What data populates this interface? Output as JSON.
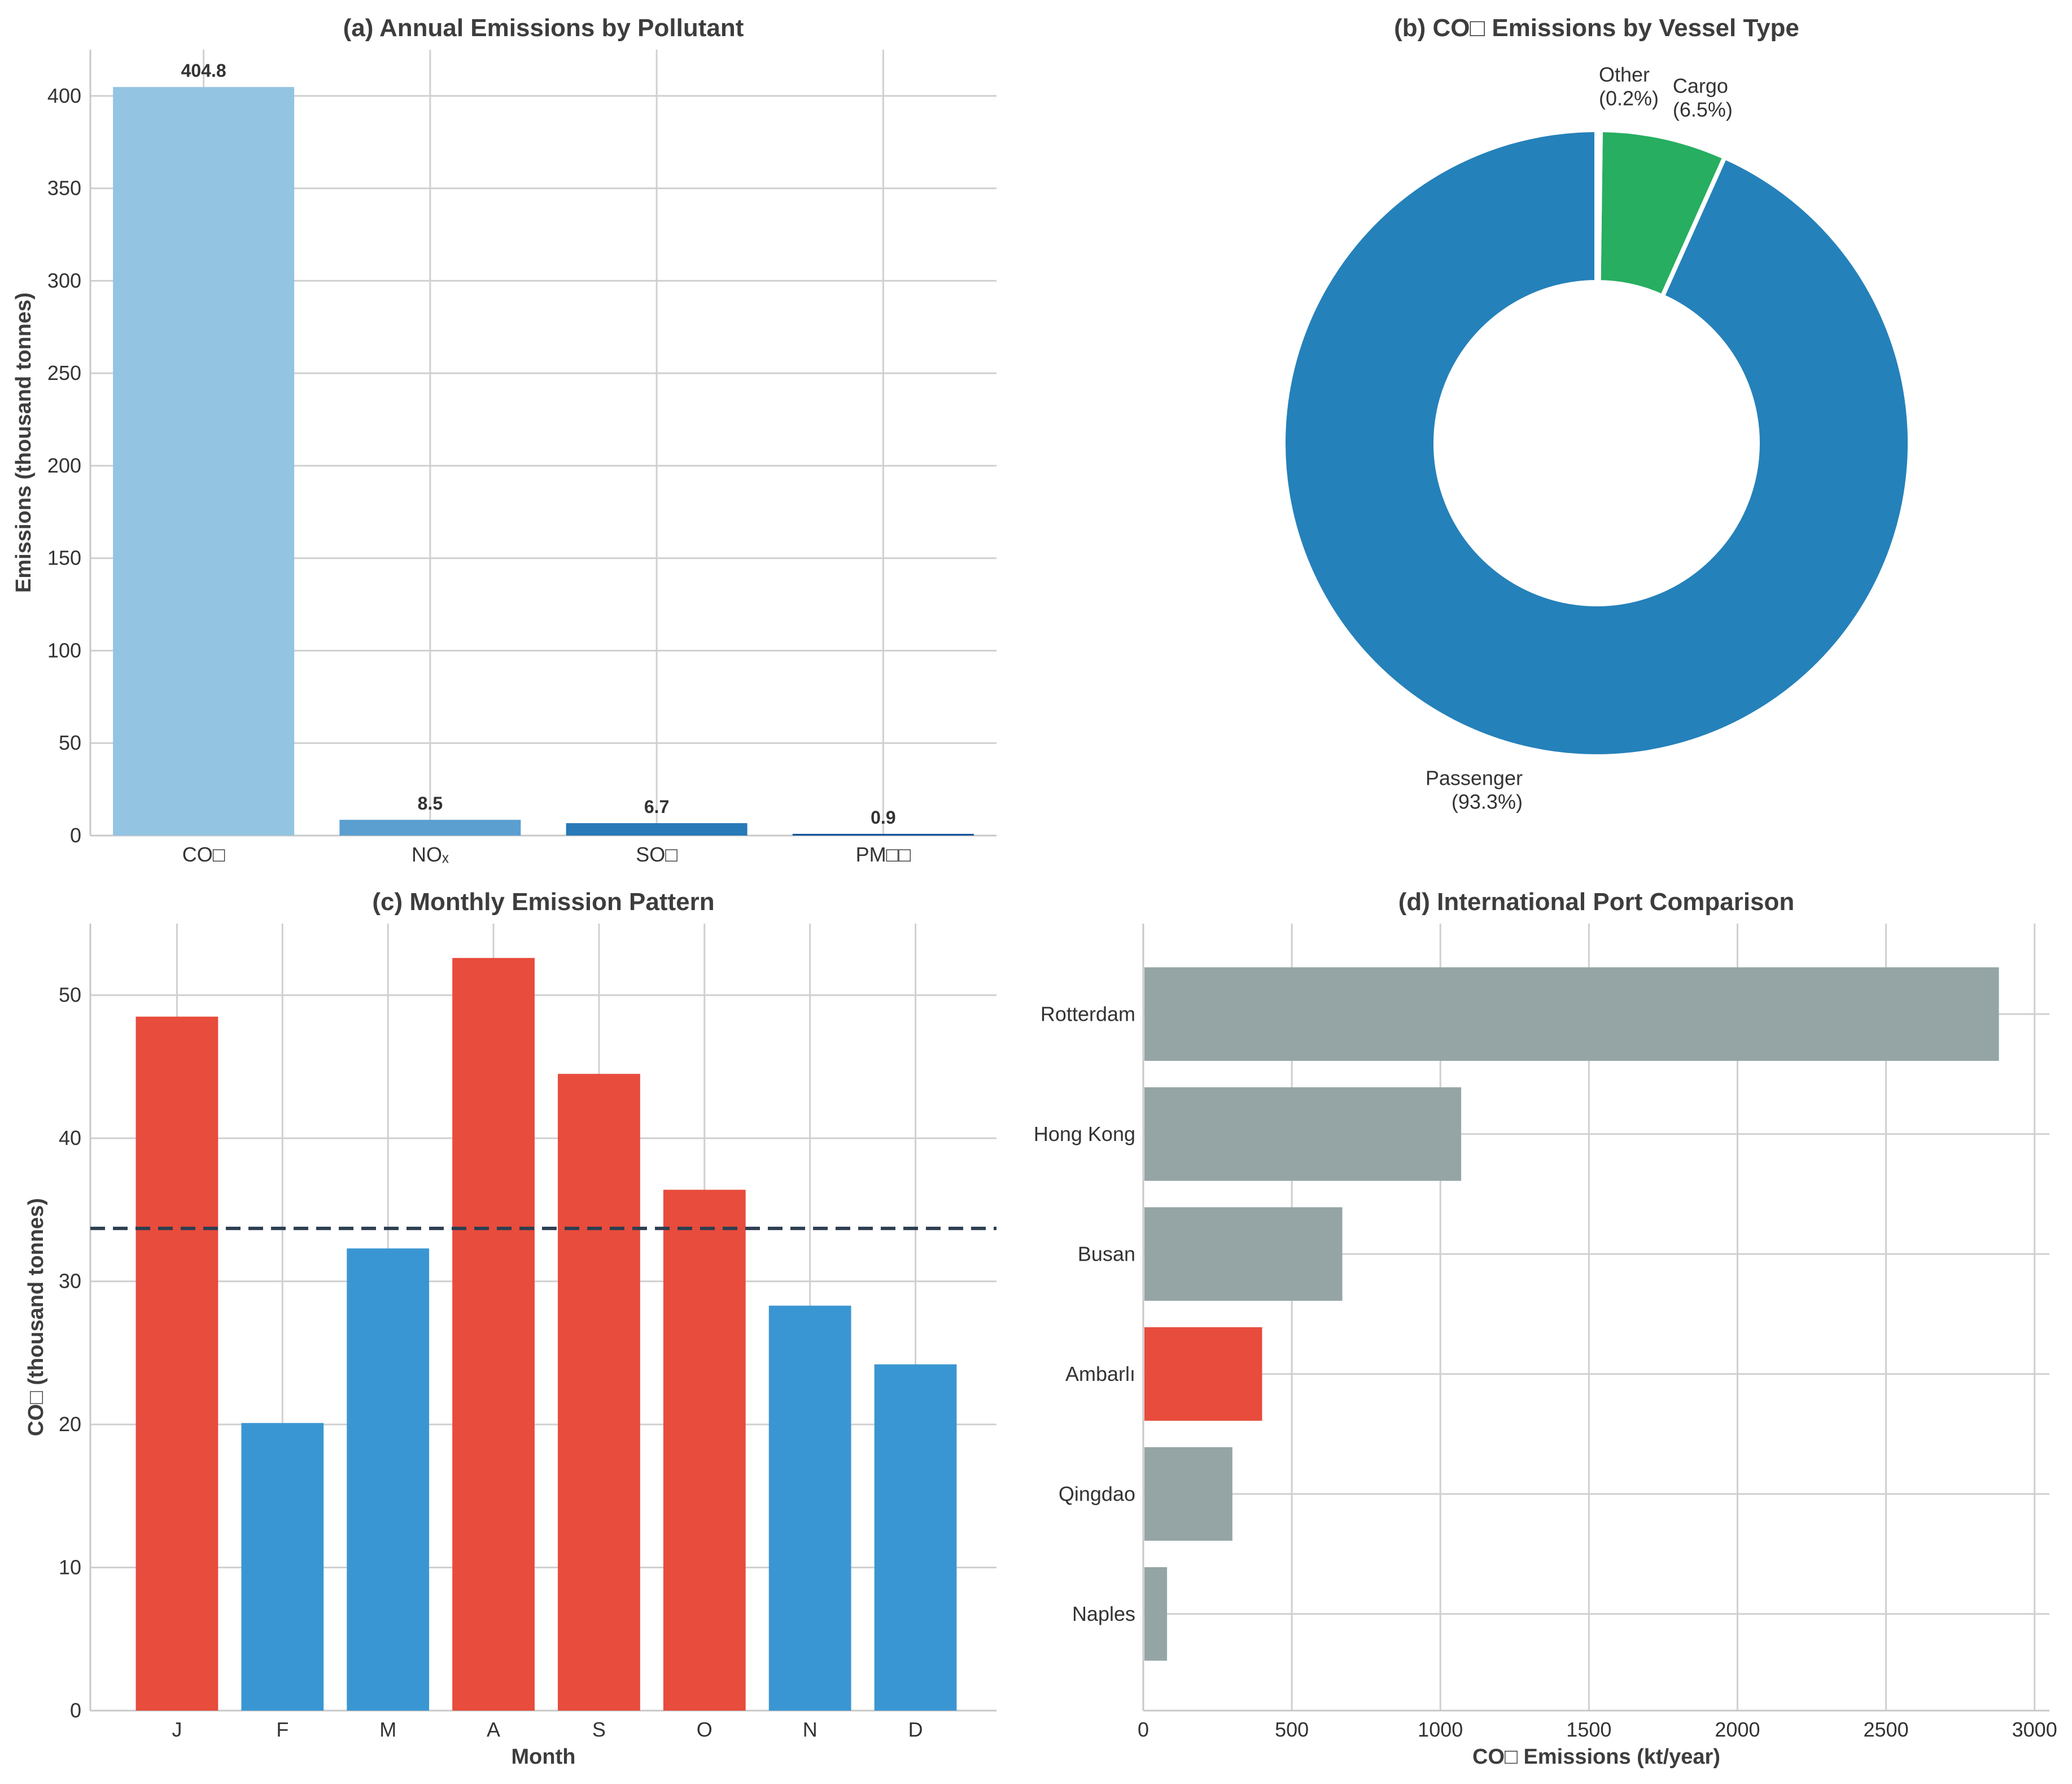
{
  "chart_data": [
    {
      "type": "bar",
      "title": "(a) Annual Emissions by Pollutant",
      "categories": [
        "CO□",
        "NOₓ",
        "SO□",
        "PM□□"
      ],
      "values": [
        404.8,
        8.5,
        6.7,
        0.9
      ],
      "value_labels": [
        "404.8",
        "8.5",
        "6.7",
        "0.9"
      ],
      "colors": [
        "#93c4e1",
        "#5a9fd0",
        "#2879b8",
        "#0b4f9c"
      ],
      "xlabel": "",
      "ylabel": "Emissions (thousand tonnes)",
      "ylim": [
        0,
        425
      ],
      "yticks": [
        0,
        50,
        100,
        150,
        200,
        250,
        300,
        350,
        400
      ],
      "grid": true
    },
    {
      "type": "pie",
      "donut": true,
      "title": "(b) CO□ Emissions by Vessel Type",
      "labels": [
        "Passenger",
        "Cargo",
        "Other"
      ],
      "values": [
        93.3,
        6.5,
        0.2
      ],
      "slice_labels": [
        "Passenger\n(93.3%)",
        "Cargo\n(6.5%)",
        "Other\n(0.2%)"
      ],
      "colors": [
        "#2581ba",
        "#27ae60",
        "#e74c3c"
      ]
    },
    {
      "type": "bar",
      "title": "(c) Monthly Emission Pattern",
      "categories": [
        "J",
        "F",
        "M",
        "A",
        "S",
        "O",
        "N",
        "D"
      ],
      "values": [
        48.5,
        20.1,
        32.3,
        52.6,
        44.5,
        36.4,
        28.3,
        24.2
      ],
      "colors": [
        "#e74c3c",
        "#3a96d2",
        "#3a96d2",
        "#e74c3c",
        "#e74c3c",
        "#e74c3c",
        "#3a96d2",
        "#3a96d2"
      ],
      "mean_line": 33.7,
      "mean_line_color": "#2c3e50",
      "xlabel": "Month",
      "ylabel": "CO□ (thousand tonnes)",
      "ylim": [
        0,
        55
      ],
      "yticks": [
        0,
        10,
        20,
        30,
        40,
        50
      ],
      "grid": true
    },
    {
      "type": "bar",
      "orientation": "horizontal",
      "title": "(d) International Port Comparison",
      "categories": [
        "Rotterdam",
        "Hong Kong",
        "Busan",
        "Ambarlı",
        "Qingdao",
        "Naples"
      ],
      "values": [
        2880,
        1070,
        670,
        400,
        300,
        80
      ],
      "colors": [
        "#95a5a6",
        "#95a5a6",
        "#95a5a6",
        "#e74c3c",
        "#95a5a6",
        "#95a5a6"
      ],
      "xlabel": "CO□ Emissions (kt/year)",
      "ylabel": "",
      "xlim": [
        0,
        3050
      ],
      "xticks": [
        0,
        500,
        1000,
        1500,
        2000,
        2500,
        3000
      ],
      "grid": true
    }
  ]
}
